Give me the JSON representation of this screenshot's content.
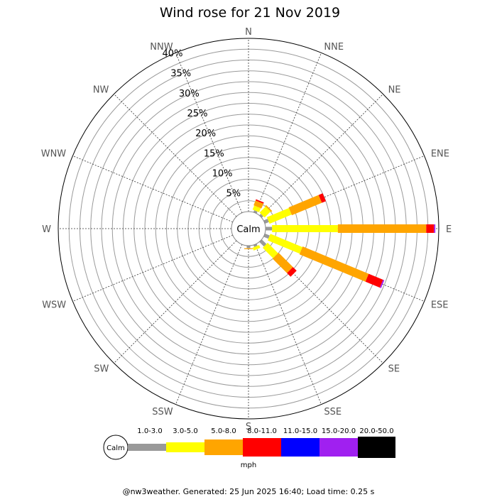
{
  "chart_data": {
    "type": "windrose",
    "title": "Wind rose for 21 Nov 2019",
    "directions": [
      "N",
      "NNE",
      "NE",
      "ENE",
      "E",
      "ESE",
      "SE",
      "SSE",
      "S",
      "SSW",
      "SW",
      "WSW",
      "W",
      "WNW",
      "NW",
      "NNW"
    ],
    "radial_labels": [
      "5%",
      "10%",
      "15%",
      "20%",
      "25%",
      "30%",
      "35%",
      "40%"
    ],
    "radial_max": 40,
    "calm_label": "Calm",
    "units": "mph",
    "speed_bins": [
      {
        "label": "1.0-3.0",
        "color": "#999999"
      },
      {
        "label": "3.0-5.0",
        "color": "#ffff00"
      },
      {
        "label": "5.0-8.0",
        "color": "#ffa500"
      },
      {
        "label": "8.0-11.0",
        "color": "#ff0000"
      },
      {
        "label": "11.0-15.0",
        "color": "#0000ff"
      },
      {
        "label": "15.0-20.0",
        "color": "#a020f0"
      },
      {
        "label": "20.0-50.0",
        "color": "#000000"
      }
    ],
    "series": [
      {
        "direction": "NNE",
        "values": [
          0.5,
          1.0,
          1.2,
          0.3,
          0,
          0,
          0
        ]
      },
      {
        "direction": "NE",
        "values": [
          0.5,
          2.0,
          0.3,
          0,
          0,
          0,
          0
        ]
      },
      {
        "direction": "ENE",
        "values": [
          1.0,
          5.5,
          7.5,
          1.0,
          0,
          0,
          0
        ]
      },
      {
        "direction": "E",
        "values": [
          1.5,
          15.2,
          20.4,
          1.8,
          0,
          0.3,
          0
        ]
      },
      {
        "direction": "ESE",
        "values": [
          1.2,
          8.0,
          16.5,
          3.6,
          0,
          0.3,
          0
        ]
      },
      {
        "direction": "SE",
        "values": [
          1.5,
          3.4,
          4.7,
          1.2,
          0,
          0,
          0
        ]
      },
      {
        "direction": "SSE",
        "values": [
          0.5,
          0.7,
          0,
          0,
          0,
          0,
          0
        ]
      },
      {
        "direction": "S",
        "values": [
          0.6,
          0,
          0.2,
          0,
          0,
          0,
          0
        ]
      }
    ]
  },
  "footer": "@nw3weather. Generated: 25 Jun 2025 16:40; Load time: 0.25 s"
}
